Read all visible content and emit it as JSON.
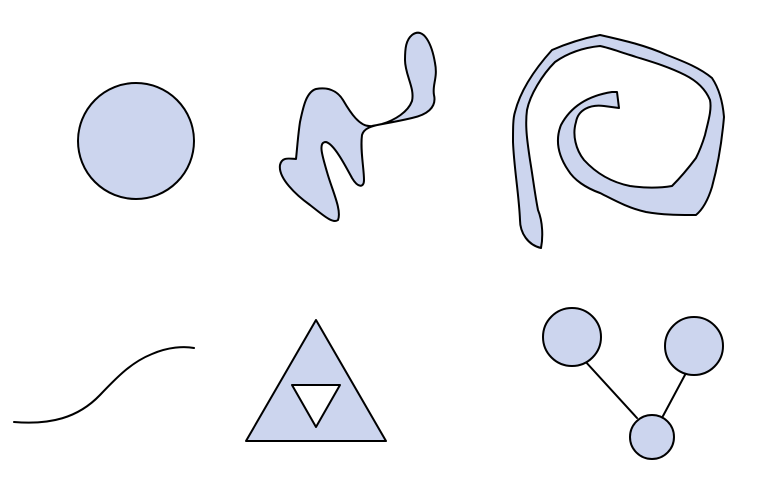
{
  "palette": {
    "fill": "#ccd5ee",
    "stroke": "#000000",
    "background": "#ffffff",
    "hole": "#ffffff"
  },
  "shapes": [
    {
      "name": "circle",
      "kind": "filled-circle"
    },
    {
      "name": "blob",
      "kind": "irregular-filled-shape"
    },
    {
      "name": "spiral",
      "kind": "filled-spiral"
    },
    {
      "name": "curve",
      "kind": "open-curve-line"
    },
    {
      "name": "triangle-with-hole",
      "kind": "triangle-with-inverted-triangle-hole"
    },
    {
      "name": "graph",
      "kind": "three-connected-nodes"
    }
  ]
}
